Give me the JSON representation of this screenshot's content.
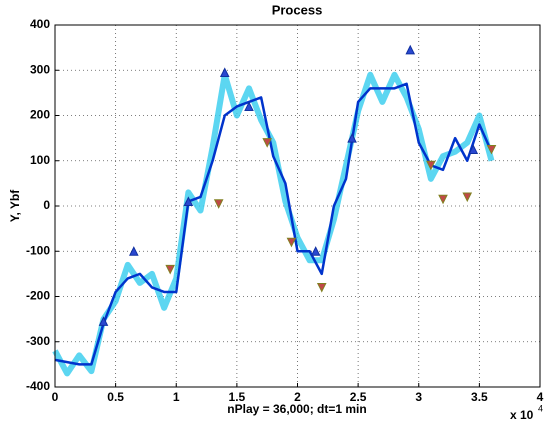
{
  "chart_data": {
    "type": "line",
    "title": "Process",
    "xlabel": "nPlay = 36,000;   dt=1 min",
    "ylabel": "Y,  Ybf",
    "x_multiplier": {
      "base": "x 10",
      "exponent": "4"
    },
    "x": [
      0,
      0.1,
      0.2,
      0.3,
      0.4,
      0.5,
      0.6,
      0.7,
      0.8,
      0.9,
      1.0,
      1.1,
      1.2,
      1.3,
      1.4,
      1.5,
      1.6,
      1.7,
      1.8,
      1.9,
      2.0,
      2.1,
      2.2,
      2.3,
      2.4,
      2.5,
      2.6,
      2.7,
      2.8,
      2.9,
      3.0,
      3.1,
      3.2,
      3.3,
      3.4,
      3.5,
      3.6
    ],
    "series": [
      {
        "color": "#33ccee",
        "values": [
          -320,
          -370,
          -330,
          -365,
          -250,
          -210,
          -130,
          -170,
          -150,
          -225,
          -160,
          30,
          -10,
          130,
          290,
          200,
          260,
          190,
          140,
          10,
          -70,
          -120,
          -120,
          -30,
          90,
          210,
          290,
          230,
          290,
          240,
          170,
          60,
          110,
          120,
          140,
          200,
          100
        ]
      },
      {
        "color": "#0033cc",
        "values": [
          -340,
          -345,
          -350,
          -350,
          -260,
          -190,
          -160,
          -150,
          -180,
          -190,
          -190,
          10,
          20,
          100,
          200,
          220,
          230,
          240,
          110,
          50,
          -100,
          -100,
          -150,
          0,
          60,
          230,
          260,
          260,
          260,
          270,
          140,
          90,
          80,
          150,
          100,
          180,
          120
        ]
      }
    ],
    "markers": {
      "up": {
        "color": "#2a48d0",
        "x": [
          0.4,
          0.65,
          1.1,
          1.4,
          1.6,
          2.15,
          2.45,
          2.93,
          3.45
        ],
        "values": [
          -255,
          -100,
          10,
          295,
          220,
          -100,
          150,
          345,
          125
        ]
      },
      "down": {
        "color": "#c04848",
        "x": [
          0.95,
          1.35,
          1.75,
          1.95,
          2.2,
          3.1,
          3.2,
          3.4,
          3.6
        ],
        "values": [
          -140,
          5,
          140,
          -80,
          -180,
          90,
          15,
          20,
          125
        ]
      }
    },
    "xlim": [
      0,
      4
    ],
    "ylim": [
      -400,
      400
    ],
    "xticks": [
      0,
      0.5,
      1,
      1.5,
      2,
      2.5,
      3,
      3.5,
      4
    ],
    "yticks": [
      -400,
      -300,
      -200,
      -100,
      0,
      100,
      200,
      300,
      400
    ],
    "grid": true
  }
}
